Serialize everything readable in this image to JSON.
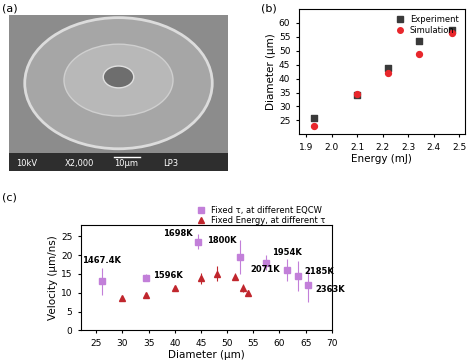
{
  "image_panel": {
    "panel": "(a)",
    "caption_bar": [
      "10kV",
      "X2,000",
      "10μm",
      "LP3"
    ]
  },
  "chart_data": [
    {
      "panel": "(b)",
      "type": "scatter",
      "x_label": "Energy (mJ)",
      "y_label": "Diameter (μm)",
      "xlim": [
        1.87,
        2.52
      ],
      "xticks": [
        1.9,
        2.0,
        2.1,
        2.2,
        2.3,
        2.4,
        2.5
      ],
      "ylim": [
        20,
        65
      ],
      "yticks": [
        25,
        30,
        35,
        40,
        45,
        50,
        55,
        60
      ],
      "legend": "upper right",
      "series": [
        {
          "name": "Experiment",
          "color": "#3a3a3a",
          "marker": "square",
          "x": [
            1.93,
            2.1,
            2.22,
            2.34,
            2.47
          ],
          "values": [
            26,
            34,
            44,
            53.5,
            57.5
          ]
        },
        {
          "name": "Simulation",
          "color": "#e8272c",
          "marker": "circle",
          "x": [
            1.93,
            2.1,
            2.22,
            2.34,
            2.47
          ],
          "values": [
            23,
            34.5,
            42,
            49,
            56.5
          ]
        }
      ]
    },
    {
      "panel": "(c)",
      "type": "scatter",
      "x_label": "Diameter (μm)",
      "y_label": "Velocity (μm/ns)",
      "xlim": [
        22,
        70
      ],
      "xticks": [
        25,
        30,
        35,
        40,
        45,
        50,
        55,
        60,
        65,
        70
      ],
      "ylim": [
        0,
        28
      ],
      "yticks": [
        0,
        5,
        10,
        15,
        20,
        25
      ],
      "legend": "upper right",
      "series": [
        {
          "name": "Fixed τ, at different EQCW",
          "color": "#c27fd9",
          "marker": "square",
          "x": [
            26,
            34.5,
            44.5,
            52.5,
            57.5,
            61.5,
            63.5,
            65.5
          ],
          "values": [
            13,
            14,
            23.5,
            19.5,
            18,
            16,
            14.5,
            12
          ],
          "errors": [
            3.5,
            1,
            2,
            4.5,
            2,
            3,
            4,
            4.5
          ],
          "annotations": [
            "1467.4K",
            "1596K",
            "1698K",
            "1800K",
            "1954K",
            "2071K",
            "2185K",
            "2363K"
          ]
        },
        {
          "name": "Fixed Energy, at different τ",
          "color": "#c0262d",
          "marker": "triangle",
          "x": [
            30,
            34.5,
            40,
            45,
            48,
            51.5,
            53,
            54
          ],
          "values": [
            8.5,
            9.5,
            11.3,
            13.8,
            15,
            14.3,
            11.3,
            9.8
          ],
          "errors": [
            0.5,
            0.5,
            0.5,
            1.5,
            2,
            1,
            1,
            0.8
          ]
        }
      ]
    }
  ]
}
